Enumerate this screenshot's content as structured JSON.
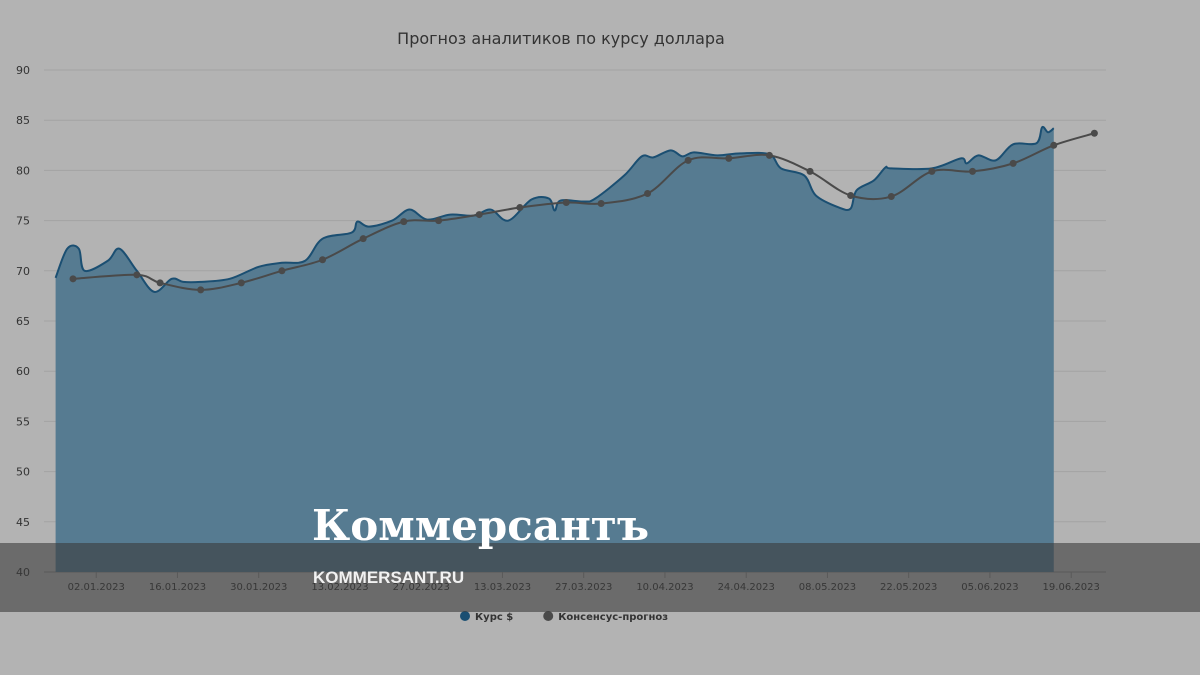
{
  "chart_data": {
    "type": "area-line",
    "title": "Прогноз аналитиков по курсу доллара",
    "xlim": [
      "24.12.2022",
      "25.06.2023"
    ],
    "xticks": [
      "02.01.2023",
      "16.01.2023",
      "30.01.2023",
      "13.02.2023",
      "27.02.2023",
      "13.03.2023",
      "27.03.2023",
      "10.04.2023",
      "24.04.2023",
      "08.05.2023",
      "22.05.2023",
      "05.06.2023",
      "19.06.2023"
    ],
    "ylim": [
      40,
      90
    ],
    "yticks": [
      40,
      45,
      50,
      55,
      60,
      65,
      70,
      75,
      80,
      85,
      90
    ],
    "grid": true,
    "series": [
      {
        "name": "Курс $",
        "type": "area",
        "color": "#1b4f72",
        "fill": "#567b91",
        "x": [
          "26.12.2022",
          "28.12.2022",
          "30.12.2022",
          "31.12.2022",
          "04.01.2023",
          "06.01.2023",
          "09.01.2023",
          "12.01.2023",
          "15.01.2023",
          "17.01.2023",
          "20.01.2023",
          "25.01.2023",
          "30.01.2023",
          "03.02.2023",
          "07.02.2023",
          "10.02.2023",
          "15.02.2023",
          "16.02.2023",
          "18.02.2023",
          "22.02.2023",
          "25.02.2023",
          "28.02.2023",
          "04.03.2023",
          "08.03.2023",
          "11.03.2023",
          "14.03.2023",
          "18.03.2023",
          "21.03.2023",
          "22.03.2023",
          "23.03.2023",
          "27.03.2023",
          "29.03.2023",
          "03.04.2023",
          "06.04.2023",
          "08.04.2023",
          "11.04.2023",
          "13.04.2023",
          "15.04.2023",
          "19.04.2023",
          "23.04.2023",
          "28.04.2023",
          "30.04.2023",
          "04.05.2023",
          "06.05.2023",
          "10.05.2023",
          "12.05.2023",
          "13.05.2023",
          "16.05.2023",
          "18.05.2023",
          "19.05.2023",
          "26.05.2023",
          "31.05.2023",
          "01.06.2023",
          "03.06.2023",
          "06.06.2023",
          "09.06.2023",
          "13.06.2023",
          "14.06.2023",
          "15.06.2023",
          "16.06.2023"
        ],
        "values": [
          69.3,
          72.2,
          72.2,
          70.0,
          71.0,
          72.2,
          70.0,
          67.9,
          69.2,
          68.9,
          68.9,
          69.2,
          70.4,
          70.8,
          71.0,
          73.2,
          73.8,
          74.9,
          74.4,
          75.0,
          76.1,
          75.1,
          75.6,
          75.5,
          76.1,
          75.0,
          77.1,
          77.2,
          76.0,
          77.0,
          76.9,
          77.2,
          79.5,
          81.4,
          81.3,
          82.0,
          81.4,
          81.8,
          81.5,
          81.7,
          81.6,
          80.2,
          79.5,
          77.5,
          76.3,
          76.2,
          78.0,
          79.0,
          80.3,
          80.2,
          80.2,
          81.2,
          80.7,
          81.5,
          81.0,
          82.6,
          82.7,
          84.3,
          83.8,
          84.2
        ]
      },
      {
        "name": "Консенсус-прогноз",
        "type": "line",
        "color": "#4a4a4a",
        "x": [
          "29.12.2022",
          "09.01.2023",
          "13.01.2023",
          "20.01.2023",
          "27.01.2023",
          "03.02.2023",
          "10.02.2023",
          "17.02.2023",
          "24.02.2023",
          "02.03.2023",
          "09.03.2023",
          "16.03.2023",
          "24.03.2023",
          "30.03.2023",
          "07.04.2023",
          "14.04.2023",
          "21.04.2023",
          "28.04.2023",
          "05.05.2023",
          "12.05.2023",
          "19.05.2023",
          "26.05.2023",
          "02.06.2023",
          "09.06.2023",
          "16.06.2023",
          "23.06.2023"
        ],
        "values": [
          69.2,
          69.6,
          68.8,
          68.1,
          68.8,
          70.0,
          71.1,
          73.2,
          74.9,
          75.0,
          75.6,
          76.3,
          76.8,
          76.7,
          77.7,
          81.0,
          81.2,
          81.5,
          79.9,
          77.5,
          77.4,
          79.9,
          79.9,
          80.7,
          82.5,
          83.7
        ]
      }
    ]
  },
  "watermark": {
    "logo": "Коммерсантъ",
    "site": "KOMMERSANT.RU"
  }
}
